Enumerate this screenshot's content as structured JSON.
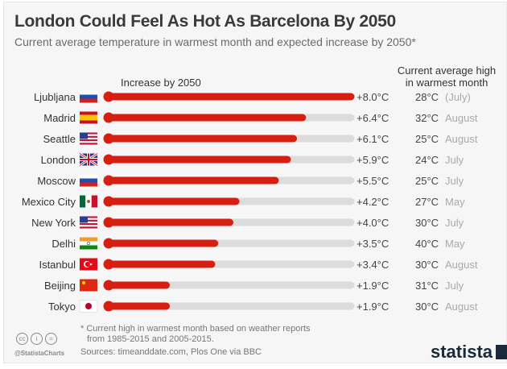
{
  "chart_data": {
    "type": "bar",
    "orientation": "horizontal",
    "title": "London Could Feel As Hot As Barcelona By 2050",
    "subtitle": "Current average temperature in warmest month and expected increase by 2050*",
    "series_label": "Increase by 2050",
    "current_label_line1": "Current average high",
    "current_label_line2": "in warmest month",
    "xlim": [
      0,
      8
    ],
    "bar_color": "#d61f10",
    "track_color": "#dcdcdc",
    "categories": [
      "Ljubljana",
      "Madrid",
      "Seattle",
      "London",
      "Moscow",
      "Mexico City",
      "New York",
      "Delhi",
      "Istanbul",
      "Beijing",
      "Tokyo"
    ],
    "values": [
      8.0,
      6.4,
      6.1,
      5.9,
      5.5,
      4.2,
      4.0,
      3.5,
      3.4,
      1.9,
      1.9
    ],
    "value_labels": [
      "+8.0°C",
      "+6.4°C",
      "+6.1°C",
      "+5.9°C",
      "+5.5°C",
      "+4.2°C",
      "+4.0°C",
      "+3.5°C",
      "+3.4°C",
      "+1.9°C",
      "+1.9°C"
    ],
    "current_high": [
      "28°C",
      "32°C",
      "25°C",
      "24°C",
      "25°C",
      "27°C",
      "30°C",
      "40°C",
      "30°C",
      "31°C",
      "30°C"
    ],
    "month": [
      "(July)",
      "August",
      "August",
      "July",
      "July",
      "May",
      "July",
      "May",
      "August",
      "July",
      "August"
    ],
    "flags": [
      "slovenia",
      "spain",
      "usa",
      "uk",
      "russia",
      "mexico",
      "usa",
      "india",
      "turkey",
      "china",
      "japan"
    ]
  },
  "footer": {
    "note_line1": "* Current high in warmest month based on weather reports",
    "note_line2": "from 1985-2015 and 2005-2015.",
    "sources": "Sources: timeanddate.com, Plos One via BBC",
    "handle": "@StatistaCharts",
    "logo": "statista",
    "cc_icons": [
      "cc",
      "by",
      "nd"
    ]
  }
}
